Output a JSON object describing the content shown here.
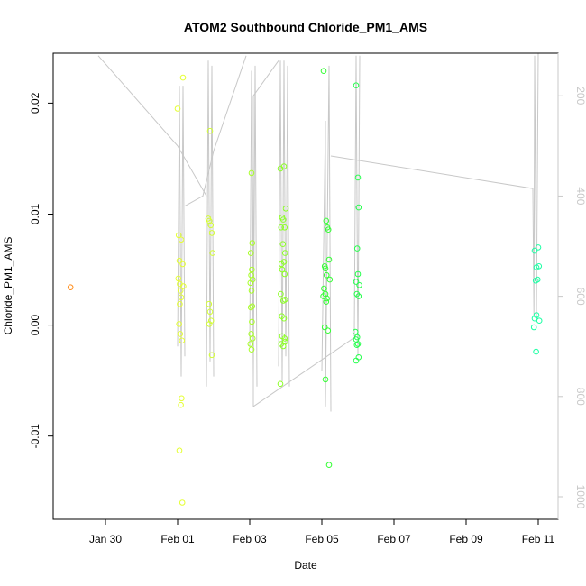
{
  "chart_data": {
    "type": "scatter",
    "title": "ATOM2 Southbound Chloride_PM1_AMS",
    "xlabel": "Date",
    "ylabel": "Chloride_PM1_AMS",
    "x_ticks": [
      "Jan 30",
      "Feb 01",
      "Feb 03",
      "Feb 05",
      "Feb 07",
      "Feb 09",
      "Feb 11"
    ],
    "x_tick_values": [
      0,
      2,
      4,
      6,
      8,
      10,
      12
    ],
    "xlim": [
      -1.45,
      12.55
    ],
    "ylim": [
      -0.0175,
      0.0245
    ],
    "y_ticks": [
      -0.01,
      0.0,
      0.01,
      0.02
    ],
    "y_tick_labels": [
      "-0.01",
      "0.00",
      "0.01",
      "0.02"
    ],
    "right_axis": {
      "note": "flight altitude / pressure axis drawn in grey",
      "ticks": [
        200,
        400,
        600,
        800,
        1000
      ],
      "lim": [
        115,
        1045
      ],
      "color": "#c8c8c8"
    },
    "grid": false,
    "legend": "none",
    "series": [
      {
        "color": "#FF8C1A",
        "points": [
          [
            -0.97,
            0.0034
          ]
        ]
      },
      {
        "color": "#E5FF33",
        "points": [
          [
            2.0,
            0.0195
          ],
          [
            2.03,
            0.0081
          ],
          [
            2.05,
            0.0058
          ],
          [
            2.02,
            0.0042
          ],
          [
            2.06,
            0.0037
          ],
          [
            2.08,
            0.0031
          ],
          [
            2.1,
            0.0025
          ],
          [
            2.04,
            0.0001
          ],
          [
            2.07,
            -0.0008
          ],
          [
            2.12,
            -0.0014
          ],
          [
            2.09,
            -0.0072
          ],
          [
            2.11,
            -0.0066
          ],
          [
            2.05,
            -0.0113
          ],
          [
            2.13,
            -0.016
          ],
          [
            2.15,
            0.0223
          ],
          [
            2.1,
            0.0077
          ],
          [
            2.14,
            0.0055
          ],
          [
            2.16,
            0.0035
          ],
          [
            2.06,
            0.0019
          ]
        ]
      },
      {
        "color": "#D4FF33",
        "points": [
          [
            2.9,
            0.0175
          ],
          [
            2.85,
            0.0096
          ],
          [
            2.88,
            0.0094
          ],
          [
            2.92,
            0.009
          ],
          [
            2.95,
            0.0083
          ],
          [
            2.97,
            0.0065
          ],
          [
            2.87,
            0.0019
          ],
          [
            2.9,
            0.0012
          ],
          [
            2.93,
            0.0004
          ],
          [
            2.88,
            0.0001
          ],
          [
            2.95,
            -0.0027
          ]
        ]
      },
      {
        "color": "#A8FF26",
        "points": [
          [
            4.05,
            0.0137
          ],
          [
            4.07,
            0.0074
          ],
          [
            4.03,
            0.0065
          ],
          [
            4.06,
            0.005
          ],
          [
            4.04,
            0.0045
          ],
          [
            4.08,
            0.0041
          ],
          [
            4.02,
            0.0038
          ],
          [
            4.05,
            0.0031
          ],
          [
            4.07,
            0.0017
          ],
          [
            4.03,
            0.0016
          ],
          [
            4.06,
            0.0003
          ],
          [
            4.04,
            -0.0008
          ],
          [
            4.08,
            -0.0012
          ],
          [
            4.02,
            -0.0017
          ],
          [
            4.05,
            -0.0022
          ]
        ]
      },
      {
        "color": "#8CFF26",
        "points": [
          [
            4.85,
            0.0141
          ],
          [
            4.95,
            0.0143
          ],
          [
            5.0,
            0.0105
          ],
          [
            4.9,
            0.0097
          ],
          [
            4.93,
            0.0095
          ],
          [
            4.87,
            0.0088
          ],
          [
            4.97,
            0.0088
          ],
          [
            4.92,
            0.0073
          ],
          [
            4.98,
            0.0065
          ],
          [
            4.88,
            0.0055
          ],
          [
            4.95,
            0.0057
          ],
          [
            4.9,
            0.005
          ],
          [
            4.97,
            0.0046
          ],
          [
            4.86,
            0.0028
          ],
          [
            4.93,
            0.0022
          ],
          [
            4.98,
            0.0023
          ],
          [
            4.89,
            0.0008
          ],
          [
            4.95,
            0.0006
          ],
          [
            4.9,
            -0.001
          ],
          [
            4.97,
            -0.0012
          ],
          [
            4.87,
            -0.0017
          ],
          [
            4.93,
            -0.0019
          ],
          [
            4.98,
            -0.0015
          ],
          [
            4.85,
            -0.0053
          ]
        ]
      },
      {
        "color": "#33FF33",
        "points": [
          [
            6.05,
            0.0229
          ],
          [
            6.12,
            0.0094
          ],
          [
            6.15,
            0.0088
          ],
          [
            6.18,
            0.0086
          ],
          [
            6.2,
            0.0059
          ],
          [
            6.08,
            0.0053
          ],
          [
            6.1,
            0.0051
          ],
          [
            6.13,
            0.0045
          ],
          [
            6.22,
            0.0041
          ],
          [
            6.06,
            0.0033
          ],
          [
            6.1,
            0.0028
          ],
          [
            6.14,
            0.0024
          ],
          [
            6.04,
            0.0026
          ],
          [
            6.12,
            0.0021
          ],
          [
            6.08,
            -0.0002
          ],
          [
            6.17,
            -0.0005
          ],
          [
            6.1,
            -0.0049
          ],
          [
            6.2,
            -0.0126
          ]
        ]
      },
      {
        "color": "#26FF4D",
        "points": [
          [
            6.95,
            0.0216
          ],
          [
            7.0,
            0.0133
          ],
          [
            7.02,
            0.0106
          ],
          [
            6.98,
            0.0069
          ],
          [
            7.0,
            0.0046
          ],
          [
            6.95,
            0.0039
          ],
          [
            7.04,
            0.0036
          ],
          [
            6.97,
            0.0028
          ],
          [
            7.02,
            0.0026
          ],
          [
            6.93,
            -0.0006
          ],
          [
            6.98,
            -0.0011
          ],
          [
            6.95,
            -0.0013
          ],
          [
            7.0,
            -0.0017
          ],
          [
            6.97,
            -0.0018
          ],
          [
            7.02,
            -0.0029
          ],
          [
            6.95,
            -0.0032
          ]
        ]
      },
      {
        "color": "#1AFFA3",
        "points": [
          [
            11.9,
            0.0067
          ],
          [
            12.0,
            0.007
          ],
          [
            11.95,
            0.0052
          ],
          [
            12.02,
            0.0053
          ],
          [
            11.93,
            0.004
          ],
          [
            11.98,
            0.0041
          ],
          [
            11.9,
            0.0006
          ],
          [
            11.95,
            0.0009
          ],
          [
            12.03,
            0.0004
          ],
          [
            11.88,
            -0.0002
          ],
          [
            11.94,
            -0.0024
          ]
        ]
      }
    ],
    "altitude_track": {
      "color": "#c8c8c8",
      "segments": [
        [
          [
            -0.2,
            120
          ],
          [
            2.0,
            300
          ],
          [
            2.8,
            400
          ]
        ],
        [
          [
            2.0,
            700
          ],
          [
            2.05,
            180
          ],
          [
            2.1,
            760
          ],
          [
            2.15,
            180
          ],
          [
            2.2,
            720
          ]
        ],
        [
          [
            2.2,
            420
          ],
          [
            2.7,
            400
          ],
          [
            3.0,
            310
          ],
          [
            3.9,
            120
          ]
        ],
        [
          [
            2.8,
            780
          ],
          [
            2.85,
            130
          ],
          [
            2.9,
            730
          ],
          [
            2.95,
            140
          ],
          [
            3.0,
            760
          ]
        ],
        [
          [
            4.0,
            700
          ],
          [
            4.05,
            150
          ],
          [
            4.1,
            760
          ],
          [
            4.15,
            140
          ],
          [
            4.2,
            780
          ]
        ],
        [
          [
            4.1,
            820
          ],
          [
            4.1,
            200
          ],
          [
            4.8,
            130
          ]
        ],
        [
          [
            4.1,
            820
          ],
          [
            6.95,
            680
          ]
        ],
        [
          [
            4.8,
            740
          ],
          [
            4.85,
            130
          ],
          [
            4.9,
            770
          ],
          [
            4.95,
            130
          ],
          [
            5.0,
            720
          ],
          [
            5.05,
            140
          ],
          [
            5.1,
            780
          ]
        ],
        [
          [
            6.0,
            750
          ],
          [
            6.1,
            250
          ],
          [
            6.1,
            820
          ],
          [
            6.2,
            140
          ],
          [
            6.25,
            830
          ]
        ],
        [
          [
            6.25,
            320
          ],
          [
            11.85,
            385
          ],
          [
            11.88,
            640
          ],
          [
            11.9,
            120
          ],
          [
            11.95,
            640
          ],
          [
            12.0,
            110
          ]
        ],
        [
          [
            6.9,
            680
          ],
          [
            6.95,
            120
          ],
          [
            7.0,
            720
          ],
          [
            7.05,
            120
          ]
        ]
      ]
    }
  }
}
